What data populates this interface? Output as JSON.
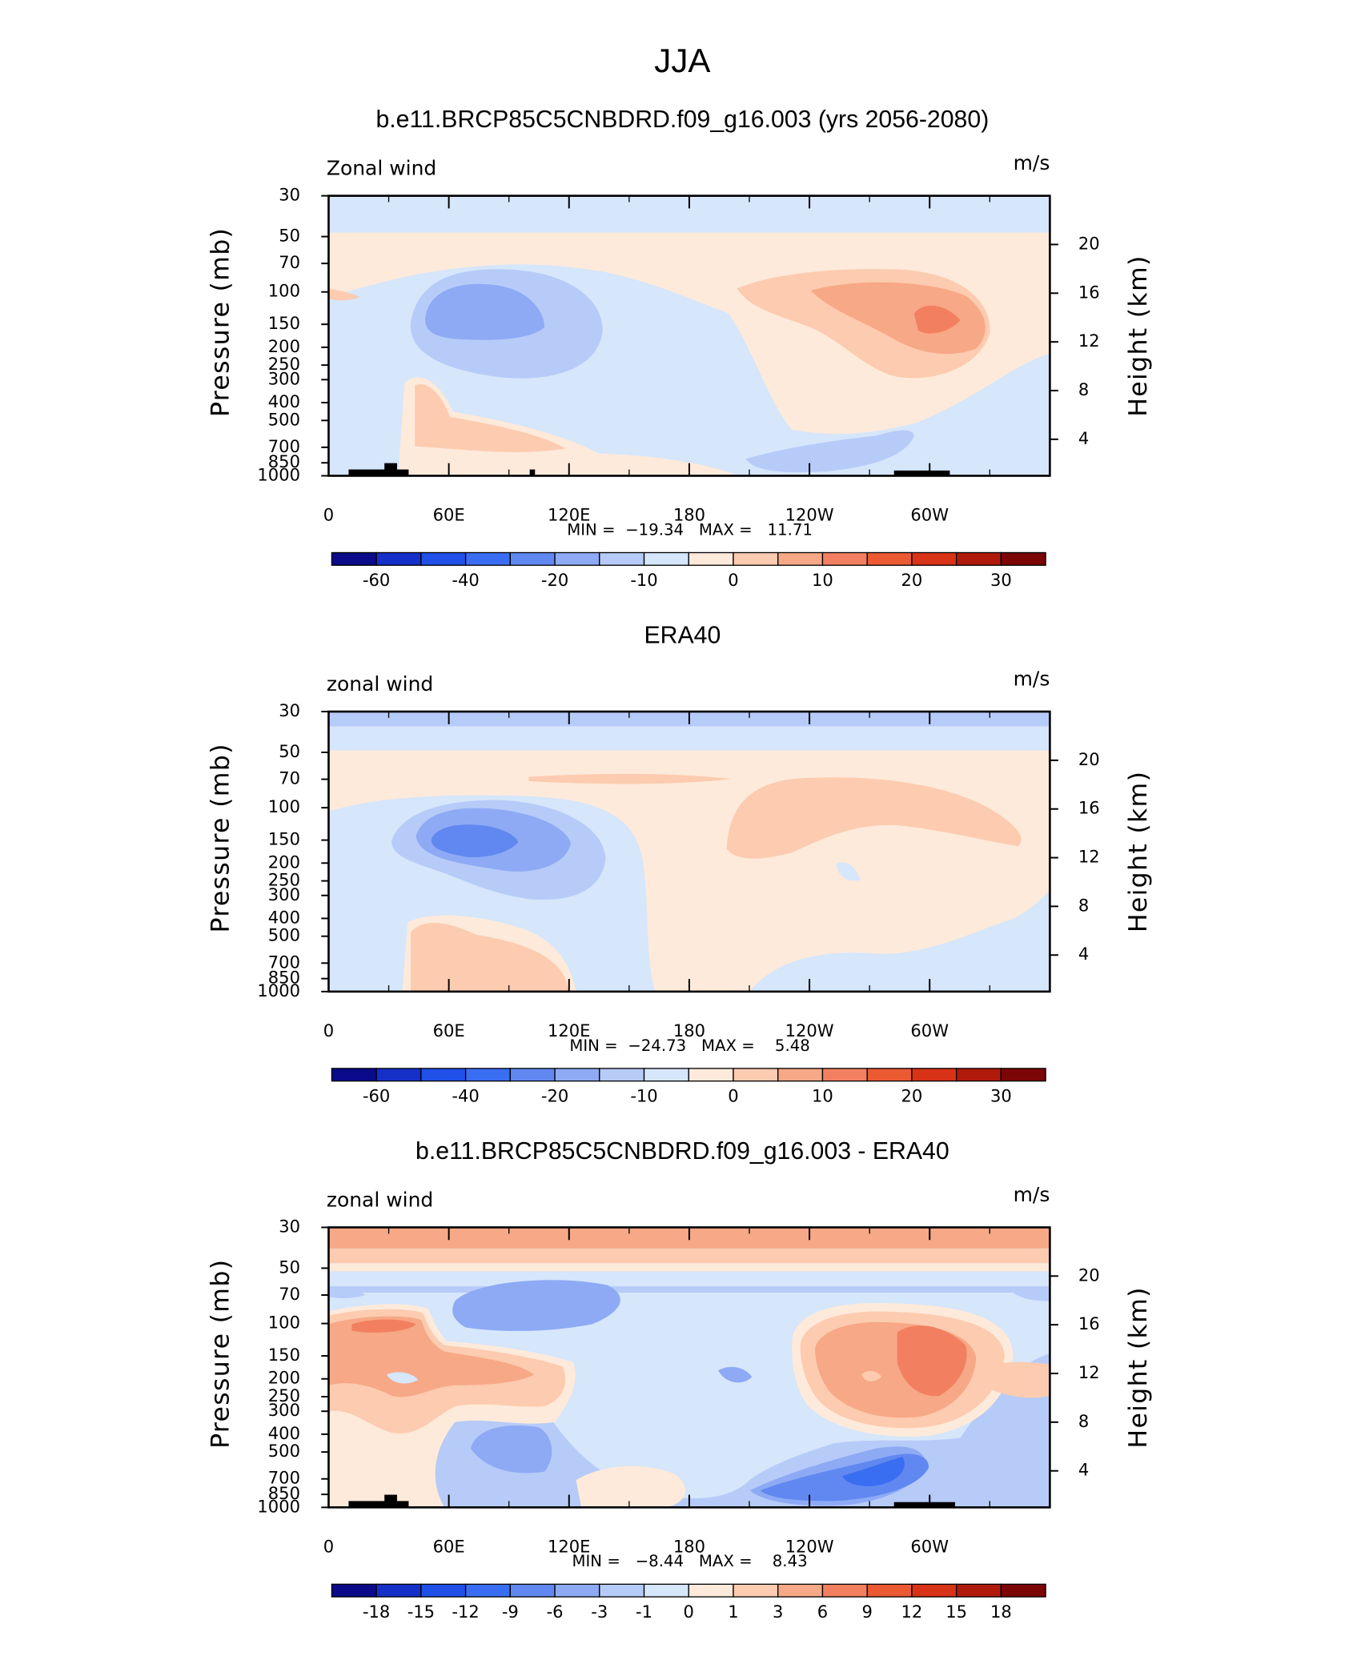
{
  "title": "JJA",
  "chart_data": [
    {
      "type": "contour",
      "title": "b.e11.BRCP85C5CNBDRD.f09_g16.003 (yrs 2056-2080)",
      "left_string": "Zonal wind",
      "right_string": "m/s",
      "ylabel": "Pressure (mb)",
      "y2label": "Height (km)",
      "ylim": [
        30,
        1000
      ],
      "ylog": true,
      "yticks": [
        30,
        50,
        70,
        100,
        150,
        200,
        250,
        300,
        400,
        500,
        700,
        850,
        1000
      ],
      "y2lim": [
        1,
        24
      ],
      "y2ticks": [
        4,
        8,
        12,
        16,
        20
      ],
      "xlim": [
        0,
        360
      ],
      "xticks": [
        0,
        {
          "value": 60,
          "label": "60E"
        },
        {
          "value": 120,
          "label": "120E"
        },
        180,
        {
          "value": 240,
          "label": "120W"
        },
        {
          "value": 300,
          "label": "60W"
        }
      ],
      "stats": "MIN =  −19.34   MAX =   11.71",
      "colorbar": {
        "colors": [
          "#0a0a8a",
          "#1530c8",
          "#2050e8",
          "#3a6ef2",
          "#6088f0",
          "#8eaaf5",
          "#b6cbf8",
          "#d6e6fb",
          "#feeada",
          "#fccbb0",
          "#f7a886",
          "#f28060",
          "#eb5a33",
          "#d83217",
          "#b01a0a",
          "#7c0506"
        ],
        "labels": [
          -60,
          -40,
          -20,
          -10,
          0,
          10,
          20,
          30
        ]
      }
    },
    {
      "type": "contour",
      "title": "ERA40",
      "left_string": "zonal wind",
      "right_string": "m/s",
      "ylabel": "Pressure (mb)",
      "y2label": "Height (km)",
      "ylim": [
        30,
        1000
      ],
      "ylog": true,
      "yticks": [
        30,
        50,
        70,
        100,
        150,
        200,
        250,
        300,
        400,
        500,
        700,
        850,
        1000
      ],
      "y2lim": [
        1,
        24
      ],
      "y2ticks": [
        4,
        8,
        12,
        16,
        20
      ],
      "xlim": [
        0,
        360
      ],
      "xticks": [
        0,
        {
          "value": 60,
          "label": "60E"
        },
        {
          "value": 120,
          "label": "120E"
        },
        180,
        {
          "value": 240,
          "label": "120W"
        },
        {
          "value": 300,
          "label": "60W"
        }
      ],
      "stats": "MIN =  −24.73   MAX =    5.48",
      "colorbar": {
        "colors": [
          "#0a0a8a",
          "#1530c8",
          "#2050e8",
          "#3a6ef2",
          "#6088f0",
          "#8eaaf5",
          "#b6cbf8",
          "#d6e6fb",
          "#feeada",
          "#fccbb0",
          "#f7a886",
          "#f28060",
          "#eb5a33",
          "#d83217",
          "#b01a0a",
          "#7c0506"
        ],
        "labels": [
          -60,
          -40,
          -20,
          -10,
          0,
          10,
          20,
          30
        ]
      }
    },
    {
      "type": "contour",
      "title": "b.e11.BRCP85C5CNBDRD.f09_g16.003 - ERA40",
      "left_string": "zonal wind",
      "right_string": "m/s",
      "ylabel": "Pressure (mb)",
      "y2label": "Height (km)",
      "ylim": [
        30,
        1000
      ],
      "ylog": true,
      "yticks": [
        30,
        50,
        70,
        100,
        150,
        200,
        250,
        300,
        400,
        500,
        700,
        850,
        1000
      ],
      "y2lim": [
        1,
        24
      ],
      "y2ticks": [
        4,
        8,
        12,
        16,
        20
      ],
      "xlim": [
        0,
        360
      ],
      "xticks": [
        0,
        {
          "value": 60,
          "label": "60E"
        },
        {
          "value": 120,
          "label": "120E"
        },
        180,
        {
          "value": 240,
          "label": "120W"
        },
        {
          "value": 300,
          "label": "60W"
        }
      ],
      "stats": "MIN =   −8.44   MAX =    8.43",
      "colorbar": {
        "colors": [
          "#0a0a8a",
          "#1530c8",
          "#2050e8",
          "#3a6ef2",
          "#6088f0",
          "#8eaaf5",
          "#b6cbf8",
          "#d6e6fb",
          "#feeada",
          "#fccbb0",
          "#f7a886",
          "#f28060",
          "#eb5a33",
          "#d83217",
          "#b01a0a",
          "#7c0506"
        ],
        "labels": [
          -18,
          -15,
          -12,
          -9,
          -6,
          -3,
          -1,
          0,
          1,
          3,
          6,
          9,
          12,
          15,
          18
        ]
      }
    }
  ]
}
